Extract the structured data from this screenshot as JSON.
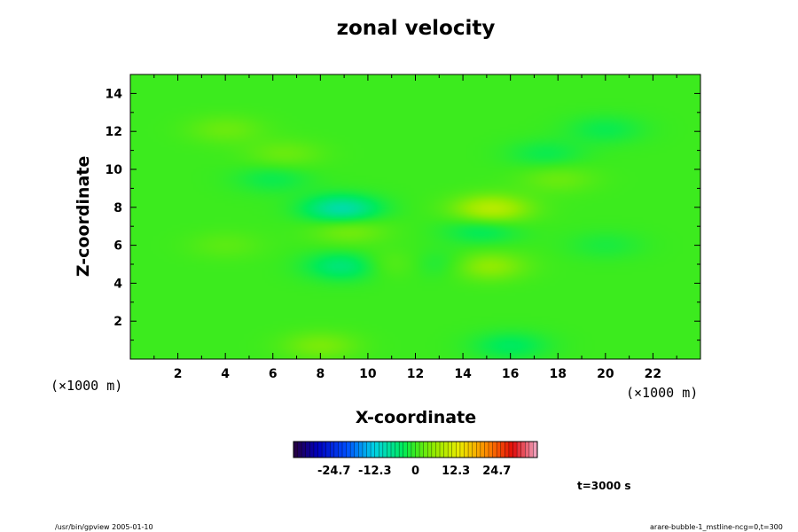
{
  "chart_data": {
    "type": "heatmap",
    "title": "zonal velocity",
    "xlabel": "X-coordinate",
    "ylabel": "Z-coordinate",
    "x_units": "(×1000 m)",
    "y_units": "(×1000 m)",
    "xlim": [
      0,
      24
    ],
    "ylim": [
      0,
      15
    ],
    "x_ticks": [
      "2",
      "4",
      "6",
      "8",
      "10",
      "12",
      "14",
      "16",
      "18",
      "20",
      "22"
    ],
    "y_ticks": [
      "2",
      "4",
      "6",
      "8",
      "10",
      "12",
      "14"
    ],
    "colorbar": {
      "range": [
        -37,
        37
      ],
      "tick_labels": [
        "-24.7",
        "-12.3",
        "0",
        "12.3",
        "24.7"
      ],
      "tick_values": [
        -24.7,
        -12.3,
        0,
        12.3,
        24.7
      ]
    },
    "features": [
      {
        "x": 8.9,
        "z": 7.9,
        "value": -9
      },
      {
        "x": 15.2,
        "z": 7.9,
        "value": 9
      },
      {
        "x": 9.2,
        "z": 6.8,
        "value": 4
      },
      {
        "x": 14.8,
        "z": 6.8,
        "value": -4
      },
      {
        "x": 9.0,
        "z": 4.9,
        "value": -6
      },
      {
        "x": 15.0,
        "z": 4.9,
        "value": 6
      },
      {
        "x": 6.0,
        "z": 9.5,
        "value": -3
      },
      {
        "x": 18.0,
        "z": 9.5,
        "value": 3
      },
      {
        "x": 6.5,
        "z": 10.8,
        "value": 3
      },
      {
        "x": 17.5,
        "z": 10.8,
        "value": -3
      },
      {
        "x": 4.0,
        "z": 12.1,
        "value": 3
      },
      {
        "x": 20.0,
        "z": 12.1,
        "value": -3
      },
      {
        "x": 11.0,
        "z": 5.0,
        "value": 3
      },
      {
        "x": 13.0,
        "z": 5.0,
        "value": -3
      },
      {
        "x": 8.0,
        "z": 0.7,
        "value": 4
      },
      {
        "x": 16.0,
        "z": 0.7,
        "value": -4
      },
      {
        "x": 4.0,
        "z": 6.0,
        "value": 2
      },
      {
        "x": 20.0,
        "z": 6.0,
        "value": -2
      }
    ]
  },
  "annotations": {
    "time": "t=3000 s",
    "footer_left": "/usr/bin/gpview 2005-01-10",
    "footer_right": "arare-bubble-1_mstline-ncg=0,t=300"
  }
}
